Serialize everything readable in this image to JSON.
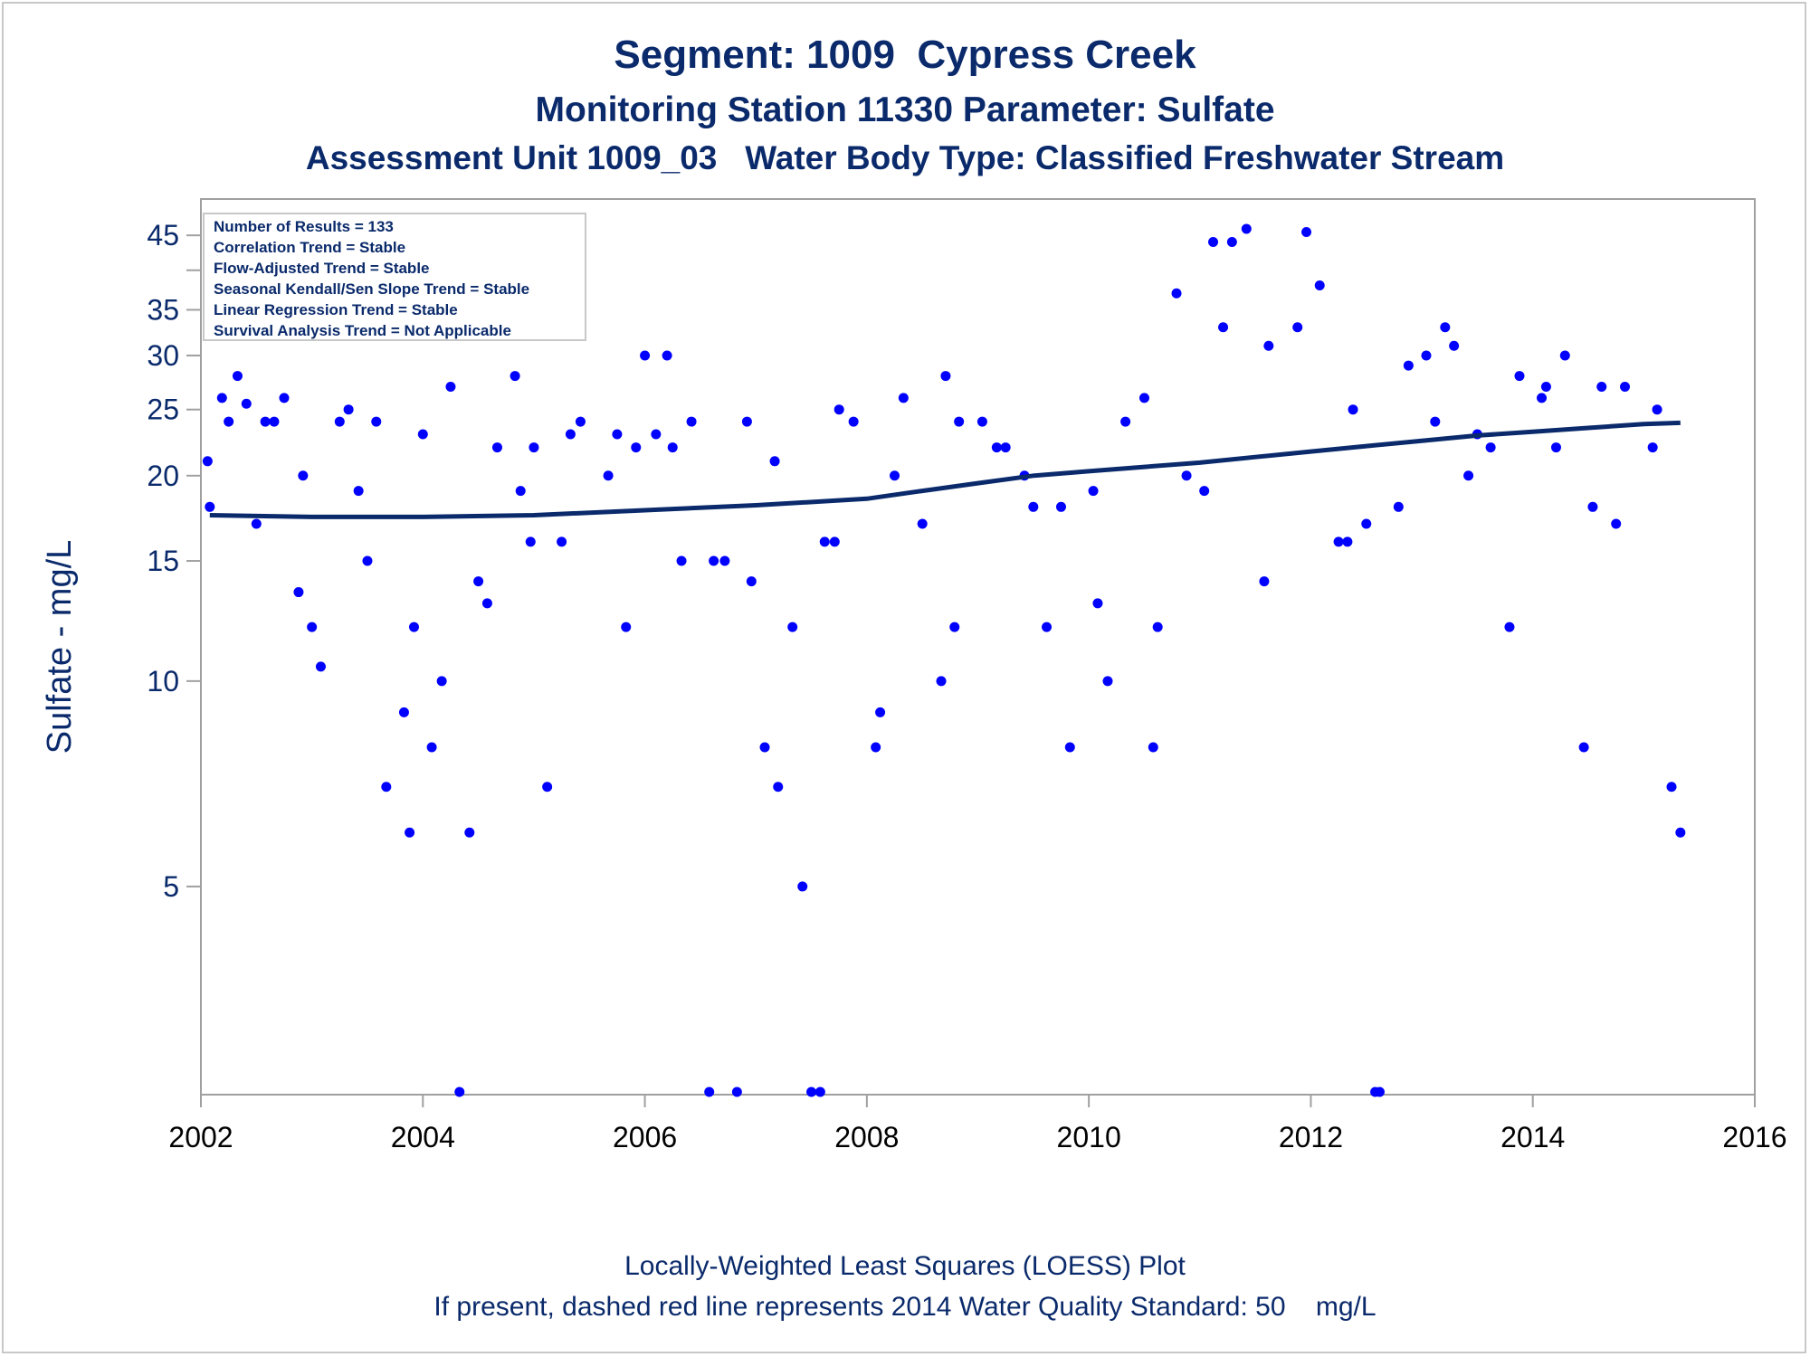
{
  "titles": {
    "line1": "Segment: 1009  Cypress Creek",
    "line2": "Monitoring Station 11330 Parameter: Sulfate",
    "line3": "Assessment Unit 1009_03   Water Body Type: Classified Freshwater Stream"
  },
  "footnotes": {
    "line1": "Locally-Weighted Least Squares (LOESS) Plot",
    "line2": "If present, dashed red line represents 2014 Water Quality Standard: 50    mg/L"
  },
  "stats_box": [
    "Number of Results = 133",
    "Correlation Trend = Stable",
    "Flow-Adjusted Trend = Stable",
    "Seasonal Kendall/Sen Slope Trend = Stable",
    "Linear Regression Trend = Stable",
    "Survival Analysis Trend = Not Applicable"
  ],
  "colors": {
    "points": "#0000ff",
    "loess_line": "#0a2a6b",
    "text": "#0a2a6b",
    "axis": "#a0a0a0"
  },
  "chart_data": {
    "type": "scatter",
    "ylabel": "Sulfate - mg/L",
    "xlabel": "",
    "y_scale": "log",
    "xlim": [
      2002.0,
      2016.0
    ],
    "ylim": [
      2.5,
      48
    ],
    "x_ticks": [
      2002,
      2004,
      2006,
      2008,
      2010,
      2012,
      2014,
      2016
    ],
    "y_ticks": [
      5,
      10,
      15,
      20,
      25,
      30,
      35,
      45
    ],
    "series": [
      {
        "type": "scatter",
        "points": [
          [
            2002.06,
            21
          ],
          [
            2002.08,
            18
          ],
          [
            2002.19,
            26
          ],
          [
            2002.25,
            24
          ],
          [
            2002.33,
            28
          ],
          [
            2002.41,
            25.5
          ],
          [
            2002.5,
            17
          ],
          [
            2002.58,
            24
          ],
          [
            2002.66,
            24
          ],
          [
            2002.75,
            26
          ],
          [
            2002.88,
            13.5
          ],
          [
            2002.92,
            20
          ],
          [
            2003.0,
            12
          ],
          [
            2003.08,
            10.5
          ],
          [
            2003.25,
            24
          ],
          [
            2003.33,
            25
          ],
          [
            2003.42,
            19
          ],
          [
            2003.5,
            15
          ],
          [
            2003.58,
            24
          ],
          [
            2003.67,
            7
          ],
          [
            2003.83,
            9
          ],
          [
            2003.88,
            6
          ],
          [
            2003.92,
            12
          ],
          [
            2004.0,
            23
          ],
          [
            2004.08,
            8
          ],
          [
            2004.17,
            10
          ],
          [
            2004.25,
            27
          ],
          [
            2004.33,
            2.5
          ],
          [
            2004.42,
            6
          ],
          [
            2004.5,
            14
          ],
          [
            2004.58,
            13
          ],
          [
            2004.67,
            22
          ],
          [
            2004.83,
            28
          ],
          [
            2004.88,
            19
          ],
          [
            2004.97,
            16
          ],
          [
            2005.0,
            22
          ],
          [
            2005.12,
            7
          ],
          [
            2005.25,
            16
          ],
          [
            2005.33,
            23
          ],
          [
            2005.42,
            24
          ],
          [
            2005.67,
            20
          ],
          [
            2005.75,
            23
          ],
          [
            2005.83,
            12
          ],
          [
            2005.92,
            22
          ],
          [
            2006.0,
            30
          ],
          [
            2006.1,
            23
          ],
          [
            2006.2,
            30
          ],
          [
            2006.25,
            22
          ],
          [
            2006.33,
            15
          ],
          [
            2006.42,
            24
          ],
          [
            2006.58,
            2.5
          ],
          [
            2006.62,
            15
          ],
          [
            2006.72,
            15
          ],
          [
            2006.83,
            2.5
          ],
          [
            2006.92,
            24
          ],
          [
            2006.96,
            14
          ],
          [
            2007.08,
            8
          ],
          [
            2007.17,
            21
          ],
          [
            2007.2,
            7
          ],
          [
            2007.33,
            12
          ],
          [
            2007.42,
            5
          ],
          [
            2007.5,
            2.5
          ],
          [
            2007.58,
            2.5
          ],
          [
            2007.62,
            16
          ],
          [
            2007.71,
            16
          ],
          [
            2007.75,
            25
          ],
          [
            2007.88,
            24
          ],
          [
            2008.08,
            8
          ],
          [
            2008.12,
            9
          ],
          [
            2008.25,
            20
          ],
          [
            2008.33,
            26
          ],
          [
            2008.5,
            17
          ],
          [
            2008.67,
            10
          ],
          [
            2008.71,
            28
          ],
          [
            2008.79,
            12
          ],
          [
            2008.83,
            24
          ],
          [
            2009.04,
            24
          ],
          [
            2009.17,
            22
          ],
          [
            2009.25,
            22
          ],
          [
            2009.42,
            20
          ],
          [
            2009.5,
            18
          ],
          [
            2009.62,
            12
          ],
          [
            2009.75,
            18
          ],
          [
            2009.83,
            8
          ],
          [
            2010.04,
            19
          ],
          [
            2010.08,
            13
          ],
          [
            2010.17,
            10
          ],
          [
            2010.33,
            24
          ],
          [
            2010.5,
            26
          ],
          [
            2010.58,
            8
          ],
          [
            2010.62,
            12
          ],
          [
            2010.79,
            37
          ],
          [
            2010.88,
            20
          ],
          [
            2011.04,
            19
          ],
          [
            2011.12,
            44
          ],
          [
            2011.21,
            33
          ],
          [
            2011.29,
            44
          ],
          [
            2011.42,
            46
          ],
          [
            2011.58,
            14
          ],
          [
            2011.62,
            31
          ],
          [
            2011.88,
            33
          ],
          [
            2011.96,
            45.5
          ],
          [
            2012.08,
            38
          ],
          [
            2012.25,
            16
          ],
          [
            2012.33,
            16
          ],
          [
            2012.38,
            25
          ],
          [
            2012.5,
            17
          ],
          [
            2012.58,
            2.5
          ],
          [
            2012.62,
            2.5
          ],
          [
            2012.79,
            18
          ],
          [
            2012.88,
            29
          ],
          [
            2013.04,
            30
          ],
          [
            2013.12,
            24
          ],
          [
            2013.21,
            33
          ],
          [
            2013.29,
            31
          ],
          [
            2013.42,
            20
          ],
          [
            2013.5,
            23
          ],
          [
            2013.62,
            22
          ],
          [
            2013.79,
            12
          ],
          [
            2013.88,
            28
          ],
          [
            2014.08,
            26
          ],
          [
            2014.12,
            27
          ],
          [
            2014.21,
            22
          ],
          [
            2014.29,
            30
          ],
          [
            2014.46,
            8
          ],
          [
            2014.54,
            18
          ],
          [
            2014.62,
            27
          ],
          [
            2014.75,
            17
          ],
          [
            2014.83,
            27
          ],
          [
            2015.08,
            22
          ],
          [
            2015.12,
            25
          ],
          [
            2015.25,
            7
          ],
          [
            2015.33,
            6
          ]
        ]
      },
      {
        "type": "line",
        "name": "LOESS",
        "points": [
          [
            2002.08,
            17.5
          ],
          [
            2003.0,
            17.4
          ],
          [
            2004.0,
            17.4
          ],
          [
            2005.0,
            17.5
          ],
          [
            2006.0,
            17.8
          ],
          [
            2007.0,
            18.1
          ],
          [
            2008.0,
            18.5
          ],
          [
            2008.5,
            19.0
          ],
          [
            2009.0,
            19.5
          ],
          [
            2009.5,
            20.0
          ],
          [
            2010.0,
            20.3
          ],
          [
            2010.5,
            20.6
          ],
          [
            2011.0,
            20.9
          ],
          [
            2011.5,
            21.3
          ],
          [
            2012.0,
            21.7
          ],
          [
            2012.5,
            22.1
          ],
          [
            2013.0,
            22.5
          ],
          [
            2013.5,
            22.9
          ],
          [
            2014.0,
            23.2
          ],
          [
            2014.5,
            23.5
          ],
          [
            2015.0,
            23.8
          ],
          [
            2015.33,
            23.9
          ]
        ]
      }
    ]
  }
}
